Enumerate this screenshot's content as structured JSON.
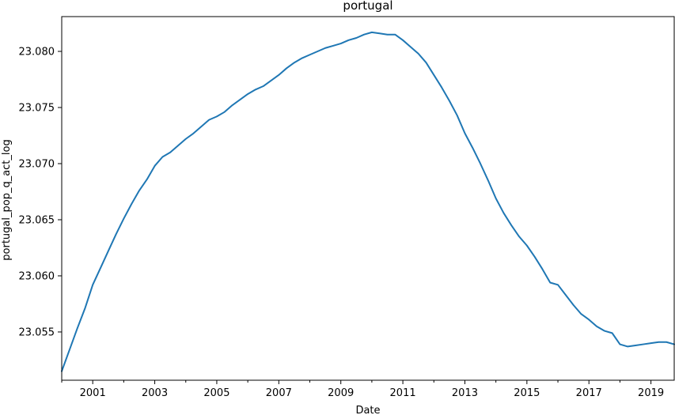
{
  "chart_data": {
    "type": "line",
    "title": "portugal",
    "xlabel": "Date",
    "ylabel": "portugal_pop_q_act_log",
    "xlim": [
      2000.0,
      2019.75
    ],
    "ylim": [
      23.0507,
      23.0831
    ],
    "x_ticks": [
      {
        "value": 2001,
        "label": "2001"
      },
      {
        "value": 2003,
        "label": "2003"
      },
      {
        "value": 2005,
        "label": "2005"
      },
      {
        "value": 2007,
        "label": "2007"
      },
      {
        "value": 2009,
        "label": "2009"
      },
      {
        "value": 2011,
        "label": "2011"
      },
      {
        "value": 2013,
        "label": "2013"
      },
      {
        "value": 2015,
        "label": "2015"
      },
      {
        "value": 2017,
        "label": "2017"
      },
      {
        "value": 2019,
        "label": "2019"
      }
    ],
    "x_minor_ticks": [
      2000,
      2002,
      2004,
      2006,
      2008,
      2010,
      2012,
      2014,
      2016,
      2018
    ],
    "y_ticks": [
      {
        "value": 23.055,
        "label": "23.055"
      },
      {
        "value": 23.06,
        "label": "23.060"
      },
      {
        "value": 23.065,
        "label": "23.065"
      },
      {
        "value": 23.07,
        "label": "23.070"
      },
      {
        "value": 23.075,
        "label": "23.075"
      },
      {
        "value": 23.08,
        "label": "23.080"
      }
    ],
    "grid": false,
    "legend": "none",
    "series": [
      {
        "color": "#1f77b4",
        "points": [
          [
            2000.0,
            23.0515
          ],
          [
            2000.25,
            23.0534
          ],
          [
            2000.5,
            23.0553
          ],
          [
            2000.75,
            23.0571
          ],
          [
            2001.0,
            23.0592
          ],
          [
            2001.25,
            23.0607
          ],
          [
            2001.5,
            23.0622
          ],
          [
            2001.75,
            23.0637
          ],
          [
            2002.0,
            23.0651
          ],
          [
            2002.25,
            23.0664
          ],
          [
            2002.5,
            23.0676
          ],
          [
            2002.75,
            23.0686
          ],
          [
            2003.0,
            23.0698
          ],
          [
            2003.25,
            23.0706
          ],
          [
            2003.5,
            23.071
          ],
          [
            2003.75,
            23.0716
          ],
          [
            2004.0,
            23.0722
          ],
          [
            2004.25,
            23.0727
          ],
          [
            2004.5,
            23.0733
          ],
          [
            2004.75,
            23.0739
          ],
          [
            2005.0,
            23.0742
          ],
          [
            2005.25,
            23.0746
          ],
          [
            2005.5,
            23.0752
          ],
          [
            2005.75,
            23.0757
          ],
          [
            2006.0,
            23.0762
          ],
          [
            2006.25,
            23.0766
          ],
          [
            2006.5,
            23.0769
          ],
          [
            2006.75,
            23.0774
          ],
          [
            2007.0,
            23.0779
          ],
          [
            2007.25,
            23.0785
          ],
          [
            2007.5,
            23.079
          ],
          [
            2007.75,
            23.0794
          ],
          [
            2008.0,
            23.0797
          ],
          [
            2008.25,
            23.08
          ],
          [
            2008.5,
            23.0803
          ],
          [
            2008.75,
            23.0805
          ],
          [
            2009.0,
            23.0807
          ],
          [
            2009.25,
            23.081
          ],
          [
            2009.5,
            23.0812
          ],
          [
            2009.75,
            23.0815
          ],
          [
            2010.0,
            23.0817
          ],
          [
            2010.25,
            23.0816
          ],
          [
            2010.5,
            23.0815
          ],
          [
            2010.75,
            23.0815
          ],
          [
            2011.0,
            23.081
          ],
          [
            2011.25,
            23.0804
          ],
          [
            2011.5,
            23.0798
          ],
          [
            2011.75,
            23.079
          ],
          [
            2012.0,
            23.0779
          ],
          [
            2012.25,
            23.0768
          ],
          [
            2012.5,
            23.0756
          ],
          [
            2012.75,
            23.0743
          ],
          [
            2013.0,
            23.0727
          ],
          [
            2013.25,
            23.0714
          ],
          [
            2013.5,
            23.07
          ],
          [
            2013.75,
            23.0685
          ],
          [
            2014.0,
            23.0669
          ],
          [
            2014.25,
            23.0656
          ],
          [
            2014.5,
            23.0645
          ],
          [
            2014.75,
            23.0635
          ],
          [
            2015.0,
            23.0627
          ],
          [
            2015.25,
            23.0617
          ],
          [
            2015.5,
            23.0606
          ],
          [
            2015.75,
            23.0594
          ],
          [
            2016.0,
            23.0592
          ],
          [
            2016.25,
            23.0583
          ],
          [
            2016.5,
            23.0574
          ],
          [
            2016.75,
            23.0566
          ],
          [
            2017.0,
            23.0561
          ],
          [
            2017.25,
            23.0555
          ],
          [
            2017.5,
            23.0551
          ],
          [
            2017.75,
            23.0549
          ],
          [
            2018.0,
            23.0539
          ],
          [
            2018.25,
            23.0537
          ],
          [
            2018.5,
            23.0538
          ],
          [
            2018.75,
            23.0539
          ],
          [
            2019.0,
            23.054
          ],
          [
            2019.25,
            23.0541
          ],
          [
            2019.5,
            23.0541
          ],
          [
            2019.75,
            23.0539
          ]
        ]
      }
    ]
  }
}
